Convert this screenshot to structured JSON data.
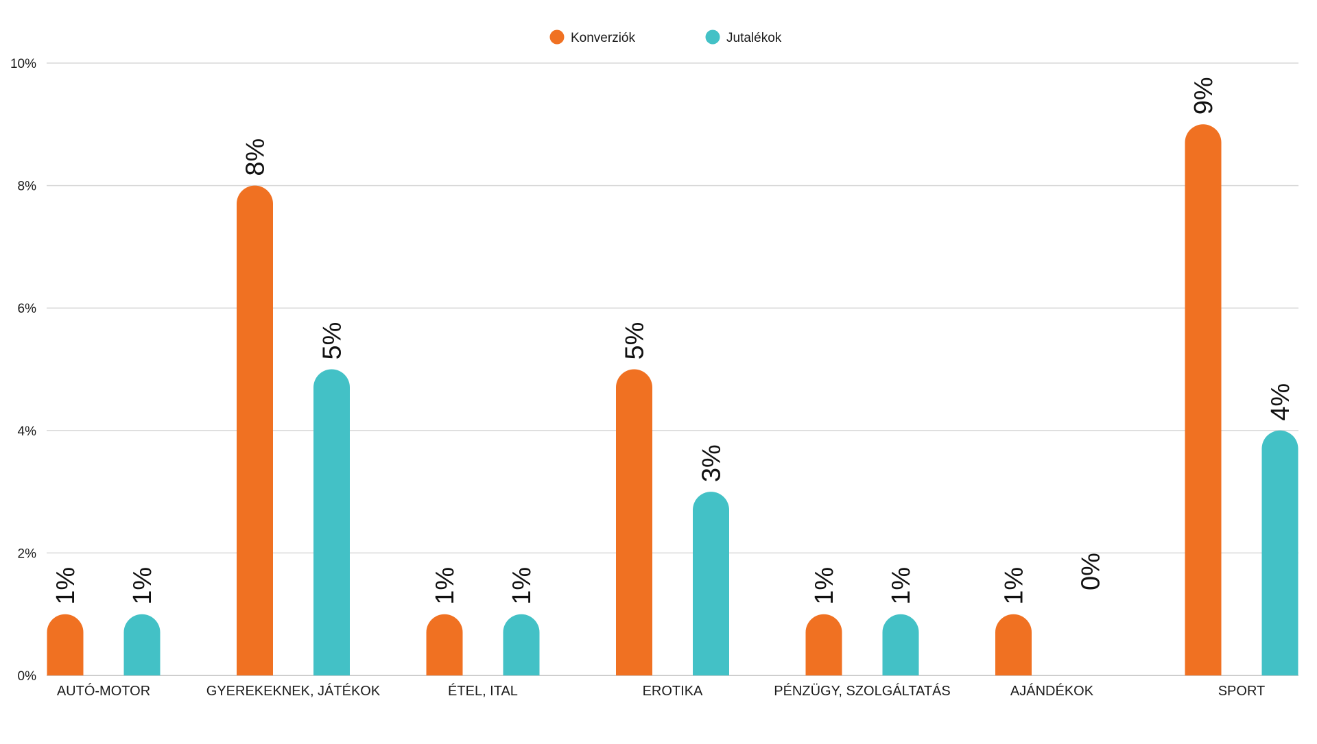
{
  "chart_data": {
    "type": "bar",
    "title": "",
    "xlabel": "",
    "ylabel": "",
    "ylim": [
      0,
      10
    ],
    "yticks": [
      0,
      2,
      4,
      6,
      8,
      10
    ],
    "ytick_labels": [
      "0%",
      "2%",
      "4%",
      "6%",
      "8%",
      "10%"
    ],
    "grid": true,
    "legend_position": "top-center",
    "categories": [
      "AUTÓ-MOTOR",
      "GYEREKEKNEK, JÁTÉKOK",
      "ÉTEL, ITAL",
      "EROTIKA",
      "PÉNZÜGY, SZOLGÁLTATÁS",
      "AJÁNDÉKOK",
      "SPORT"
    ],
    "series": [
      {
        "name": "Konverziók",
        "color": "#f07122",
        "values": [
          1,
          8,
          1,
          5,
          1,
          1,
          9
        ],
        "labels": [
          "1%",
          "8%",
          "1%",
          "5%",
          "1%",
          "1%",
          "9%"
        ]
      },
      {
        "name": "Jutalékok",
        "color": "#43c1c6",
        "values": [
          1,
          5,
          1,
          3,
          1,
          0,
          4
        ],
        "labels": [
          "1%",
          "5%",
          "1%",
          "3%",
          "1%",
          "0%",
          "4%"
        ]
      }
    ]
  }
}
